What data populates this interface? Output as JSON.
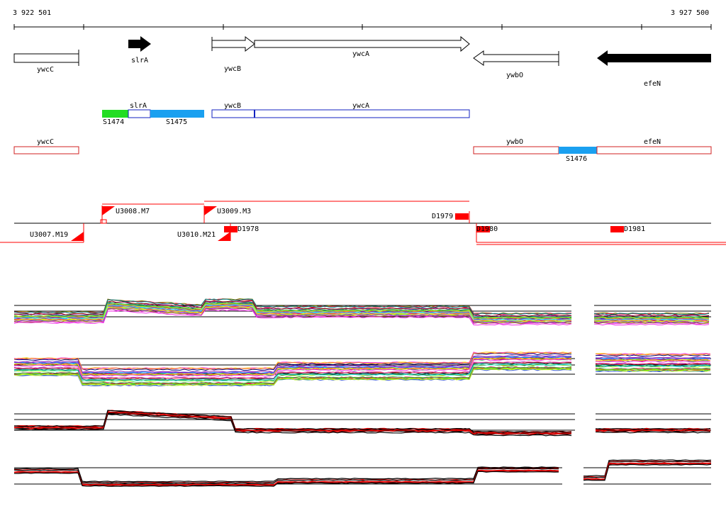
{
  "coords": {
    "start": "3 922 501",
    "end": "3 927 500"
  },
  "genes": [
    {
      "id": "ywcC",
      "label": "ywcC"
    },
    {
      "id": "slrA",
      "label": "slrA"
    },
    {
      "id": "ywcB",
      "label": "ywcB"
    },
    {
      "id": "ywcA",
      "label": "ywcA"
    },
    {
      "id": "ywbO",
      "label": "ywbO"
    },
    {
      "id": "efeN",
      "label": "efeN"
    }
  ],
  "transcripts_plus": {
    "labels": [
      "slrA",
      "ywcB",
      "ywcA"
    ],
    "segments": [
      "S1474",
      "S1475"
    ]
  },
  "transcripts_minus": {
    "labels": [
      "ywcC",
      "ywbO",
      "efeN"
    ],
    "segments": [
      "S1476"
    ]
  },
  "upshifts": [
    "U3008.M7",
    "U3009.M3",
    "U3007.M19",
    "U3010.M21"
  ],
  "downshifts": [
    "D1979",
    "D1978",
    "D1980",
    "D1981"
  ],
  "colors": {
    "segment_green": "#22dd22",
    "segment_blue": "#1aa0f0",
    "strand_plus": "#1020c0",
    "strand_minus": "#d02020",
    "marker_red": "#ff0000"
  }
}
